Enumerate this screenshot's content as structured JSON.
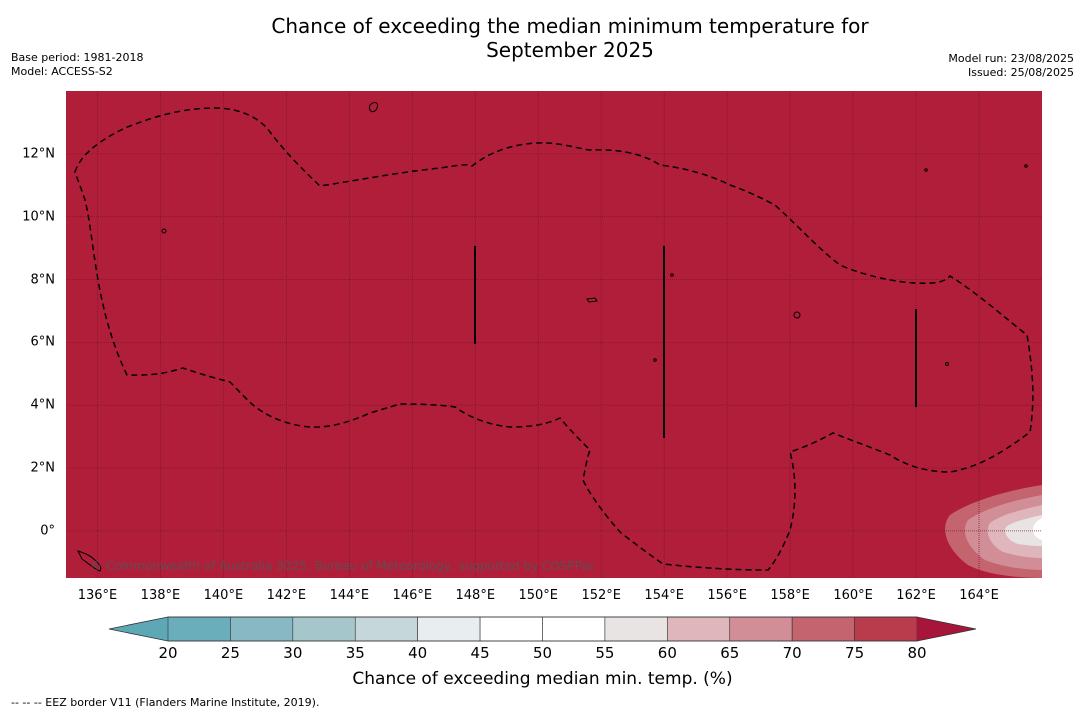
{
  "title": "Chance of exceeding the median minimum temperature for September 2025",
  "title_line1": "Chance of exceeding the median minimum temperature for",
  "title_line2": "September 2025",
  "base_period": "Base period: 1981-2018",
  "model": "Model: ACCESS-S2",
  "model_run": "Model run: 23/08/2025",
  "issued": "Issued: 25/08/2025",
  "copyright": "© Commonwealth of Australia 2025, Bureau of Meteorology, supported by COSPPac",
  "legend_note": "--  --  -- EEZ border V11 (Flanders Marine Institute, 2019).",
  "map": {
    "lon_range": [
      135,
      166
    ],
    "lat_range": [
      -1.5,
      14
    ],
    "x_ticks": [
      "136°E",
      "138°E",
      "140°E",
      "142°E",
      "144°E",
      "146°E",
      "148°E",
      "150°E",
      "152°E",
      "154°E",
      "156°E",
      "158°E",
      "160°E",
      "162°E",
      "164°E"
    ],
    "y_ticks": [
      "12°N",
      "10°N",
      "8°N",
      "6°N",
      "4°N",
      "2°N",
      "0°"
    ],
    "dominant_category": "80+",
    "colors": {
      "background_high": "#b01e3a",
      "gridline": "#7a1428",
      "eez_line": "#000000"
    }
  },
  "colorbar": {
    "title": "Chance of exceeding median min. temp. (%)",
    "ticks": [
      "20",
      "25",
      "30",
      "35",
      "40",
      "45",
      "50",
      "55",
      "60",
      "65",
      "70",
      "75",
      "80"
    ],
    "colors": [
      "#5ea8b6",
      "#6aaebb",
      "#87b8c3",
      "#a5c7cc",
      "#c6d7db",
      "#e8eef0",
      "#ffffff",
      "#ffffff",
      "#e8e4e4",
      "#deb6bc",
      "#d18e96",
      "#c4646f",
      "#b83c4c",
      "#a8153a"
    ]
  }
}
